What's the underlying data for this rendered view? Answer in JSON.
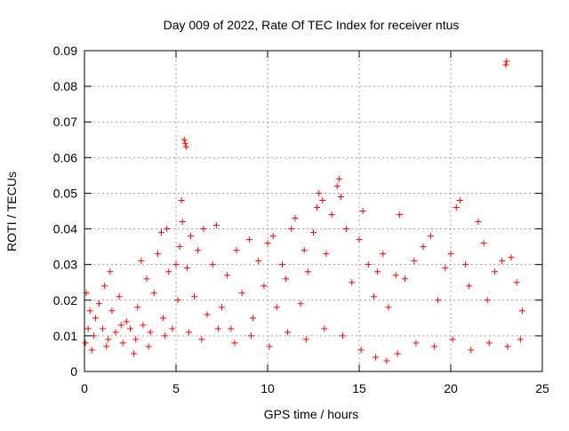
{
  "chart_data": {
    "type": "scatter",
    "title": "Day 009 of 2022, Rate Of TEC Index for receiver ntus",
    "xlabel": "GPS time / hours",
    "ylabel": "ROTI / TECUs",
    "xlim": [
      0,
      25
    ],
    "ylim": [
      0,
      0.09
    ],
    "x_ticks": [
      0,
      5,
      10,
      15,
      20,
      25
    ],
    "x_tick_labels": [
      "0",
      "5",
      "10",
      "15",
      "20",
      "25"
    ],
    "y_ticks": [
      0,
      0.01,
      0.02,
      0.03,
      0.04,
      0.05,
      0.06,
      0.07,
      0.08,
      0.09
    ],
    "y_tick_labels": [
      "0",
      "0.01",
      "0.02",
      "0.03",
      "0.04",
      "0.05",
      "0.06",
      "0.07",
      "0.08",
      "0.09"
    ],
    "grid": true,
    "marker": "+",
    "color": "#ff0000",
    "series": [
      {
        "points": [
          [
            0.05,
            0.008
          ],
          [
            0.1,
            0.022
          ],
          [
            0.2,
            0.012
          ],
          [
            0.3,
            0.017
          ],
          [
            0.4,
            0.006
          ],
          [
            0.6,
            0.015
          ],
          [
            0.8,
            0.019
          ],
          [
            1.0,
            0.012
          ],
          [
            1.1,
            0.024
          ],
          [
            1.3,
            0.009
          ],
          [
            1.4,
            0.028
          ],
          [
            1.5,
            0.017
          ],
          [
            1.7,
            0.011
          ],
          [
            1.9,
            0.021
          ],
          [
            2.1,
            0.008
          ],
          [
            2.3,
            0.014
          ],
          [
            2.5,
            0.012
          ],
          [
            2.7,
            0.005
          ],
          [
            2.9,
            0.018
          ],
          [
            3.1,
            0.031
          ],
          [
            3.2,
            0.013
          ],
          [
            3.4,
            0.026
          ],
          [
            3.6,
            0.011
          ],
          [
            3.8,
            0.022
          ],
          [
            4.0,
            0.033
          ],
          [
            4.2,
            0.039
          ],
          [
            4.3,
            0.015
          ],
          [
            4.5,
            0.04
          ],
          [
            4.6,
            0.028
          ],
          [
            4.8,
            0.012
          ],
          [
            5.0,
            0.03
          ],
          [
            5.1,
            0.02
          ],
          [
            5.2,
            0.035
          ],
          [
            5.3,
            0.048
          ],
          [
            5.35,
            0.042
          ],
          [
            5.45,
            0.065
          ],
          [
            5.5,
            0.064
          ],
          [
            5.55,
            0.063
          ],
          [
            5.6,
            0.029
          ],
          [
            5.8,
            0.038
          ],
          [
            6.0,
            0.021
          ],
          [
            6.2,
            0.034
          ],
          [
            6.5,
            0.04
          ],
          [
            6.7,
            0.016
          ],
          [
            7.0,
            0.03
          ],
          [
            7.2,
            0.041
          ],
          [
            7.5,
            0.018
          ],
          [
            7.8,
            0.027
          ],
          [
            8.0,
            0.012
          ],
          [
            8.3,
            0.034
          ],
          [
            8.6,
            0.022
          ],
          [
            9.0,
            0.037
          ],
          [
            9.2,
            0.015
          ],
          [
            9.5,
            0.031
          ],
          [
            9.8,
            0.024
          ],
          [
            10.0,
            0.036
          ],
          [
            10.3,
            0.038
          ],
          [
            10.5,
            0.018
          ],
          [
            10.8,
            0.03
          ],
          [
            11.0,
            0.026
          ],
          [
            11.3,
            0.04
          ],
          [
            11.5,
            0.043
          ],
          [
            11.8,
            0.019
          ],
          [
            12.0,
            0.034
          ],
          [
            12.2,
            0.028
          ],
          [
            12.5,
            0.039
          ],
          [
            12.7,
            0.046
          ],
          [
            12.8,
            0.05
          ],
          [
            13.0,
            0.048
          ],
          [
            13.2,
            0.033
          ],
          [
            13.5,
            0.044
          ],
          [
            13.8,
            0.052
          ],
          [
            13.9,
            0.054
          ],
          [
            14.0,
            0.049
          ],
          [
            14.3,
            0.04
          ],
          [
            14.6,
            0.025
          ],
          [
            15.0,
            0.037
          ],
          [
            15.2,
            0.045
          ],
          [
            15.5,
            0.03
          ],
          [
            15.8,
            0.021
          ],
          [
            16.0,
            0.028
          ],
          [
            16.3,
            0.033
          ],
          [
            16.6,
            0.018
          ],
          [
            17.0,
            0.027
          ],
          [
            17.2,
            0.044
          ],
          [
            17.5,
            0.026
          ],
          [
            18.0,
            0.031
          ],
          [
            18.5,
            0.035
          ],
          [
            18.9,
            0.038
          ],
          [
            19.3,
            0.02
          ],
          [
            19.7,
            0.029
          ],
          [
            20.0,
            0.033
          ],
          [
            20.3,
            0.046
          ],
          [
            20.5,
            0.048
          ],
          [
            20.8,
            0.03
          ],
          [
            21.0,
            0.024
          ],
          [
            21.5,
            0.042
          ],
          [
            21.8,
            0.036
          ],
          [
            22.0,
            0.02
          ],
          [
            22.4,
            0.028
          ],
          [
            22.8,
            0.031
          ],
          [
            23.0,
            0.086
          ],
          [
            23.05,
            0.087
          ],
          [
            23.3,
            0.032
          ],
          [
            23.6,
            0.025
          ],
          [
            23.9,
            0.017
          ],
          [
            0.5,
            0.01
          ],
          [
            1.2,
            0.007
          ],
          [
            2.0,
            0.013
          ],
          [
            2.8,
            0.009
          ],
          [
            3.5,
            0.007
          ],
          [
            4.4,
            0.01
          ],
          [
            5.7,
            0.011
          ],
          [
            6.4,
            0.009
          ],
          [
            7.3,
            0.012
          ],
          [
            8.2,
            0.008
          ],
          [
            9.1,
            0.01
          ],
          [
            10.1,
            0.007
          ],
          [
            11.1,
            0.011
          ],
          [
            12.1,
            0.009
          ],
          [
            13.1,
            0.012
          ],
          [
            14.1,
            0.01
          ],
          [
            15.1,
            0.006
          ],
          [
            15.9,
            0.004
          ],
          [
            16.5,
            0.003
          ],
          [
            17.1,
            0.005
          ],
          [
            18.1,
            0.008
          ],
          [
            19.1,
            0.007
          ],
          [
            20.1,
            0.009
          ],
          [
            21.1,
            0.006
          ],
          [
            22.1,
            0.008
          ],
          [
            23.1,
            0.007
          ],
          [
            23.8,
            0.009
          ]
        ]
      }
    ]
  }
}
